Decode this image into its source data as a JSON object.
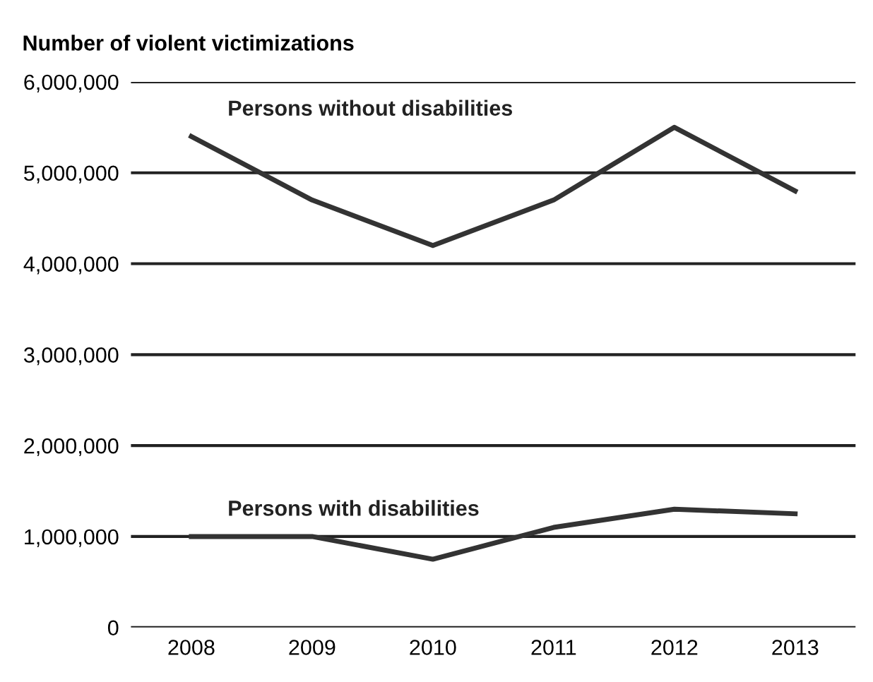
{
  "chart_data": {
    "type": "line",
    "title": "Number of violent victimizations",
    "categories": [
      "2008",
      "2009",
      "2010",
      "2011",
      "2012",
      "2013"
    ],
    "series": [
      {
        "name": "Persons without disabilities",
        "color": "#333333",
        "values": [
          5400000,
          4700000,
          4200000,
          4700000,
          5500000,
          4800000
        ]
      },
      {
        "name": "Persons with disabilities",
        "color": "#333333",
        "values": [
          1000000,
          1000000,
          750000,
          1100000,
          1300000,
          1250000
        ]
      }
    ],
    "ylim": [
      0,
      6000000
    ],
    "yticks": [
      {
        "value": 0,
        "label": "0"
      },
      {
        "value": 1000000,
        "label": "1,000,000"
      },
      {
        "value": 2000000,
        "label": "2,000,000"
      },
      {
        "value": 3000000,
        "label": "3,000,000"
      },
      {
        "value": 4000000,
        "label": "4,000,000"
      },
      {
        "value": 5000000,
        "label": "5,000,000"
      },
      {
        "value": 6000000,
        "label": "6,000,000"
      }
    ],
    "grid": "y",
    "legend": false,
    "marker": "none",
    "line_style": "solid"
  }
}
